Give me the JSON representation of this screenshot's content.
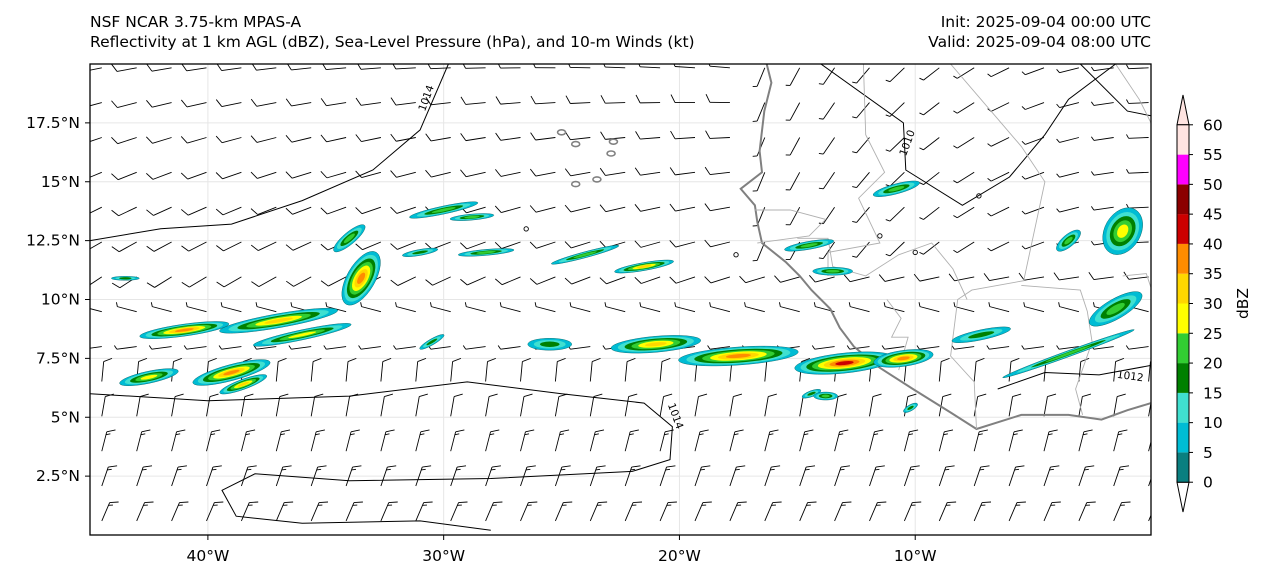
{
  "header": {
    "model": "NSF NCAR 3.75-km MPAS-A",
    "fields": "Reflectivity at 1 km AGL (dBZ), Sea-Level Pressure (hPa), and 10-m Winds (kt)",
    "init": "Init: 2025-09-04 00:00 UTC",
    "valid": "Valid: 2025-09-04 08:00 UTC"
  },
  "map": {
    "lon_range": [
      -45,
      0
    ],
    "lat_range": [
      0,
      20
    ],
    "lon_ticks": [
      {
        "value": -40,
        "label": "40°W"
      },
      {
        "value": -30,
        "label": "30°W"
      },
      {
        "value": -20,
        "label": "20°W"
      },
      {
        "value": -10,
        "label": "10°W"
      }
    ],
    "lat_ticks": [
      {
        "value": 2.5,
        "label": "2.5°N"
      },
      {
        "value": 5,
        "label": "5°N"
      },
      {
        "value": 7.5,
        "label": "7.5°N"
      },
      {
        "value": 10,
        "label": "10°N"
      },
      {
        "value": 12.5,
        "label": "12.5°N"
      },
      {
        "value": 15,
        "label": "15°N"
      },
      {
        "value": 17.5,
        "label": "17.5°N"
      }
    ],
    "isobar_labels": [
      {
        "text": "1014",
        "lon": -30.6,
        "lat": 18.5
      },
      {
        "text": "1010",
        "lon": -10.2,
        "lat": 16.6
      },
      {
        "text": "1014",
        "lon": -20.3,
        "lat": 5.0
      },
      {
        "text": "1012",
        "lon": -0.9,
        "lat": 6.6
      }
    ],
    "colors": {
      "coast": "#808080",
      "border": "#b0b0b0",
      "isobar": "#000000",
      "barb": "#000000",
      "grid": "#e6e6e6"
    }
  },
  "colorbar": {
    "label": "dBZ",
    "ticks": [
      "0",
      "5",
      "10",
      "15",
      "20",
      "25",
      "30",
      "35",
      "40",
      "45",
      "50",
      "55",
      "60"
    ],
    "colors": [
      "#0a7f80",
      "#00bcd4",
      "#40e0d0",
      "#008000",
      "#32cd32",
      "#ffff00",
      "#ffd700",
      "#ff8c00",
      "#cc0000",
      "#8b0000",
      "#ff00ff",
      "#ffe4e1"
    ]
  }
}
